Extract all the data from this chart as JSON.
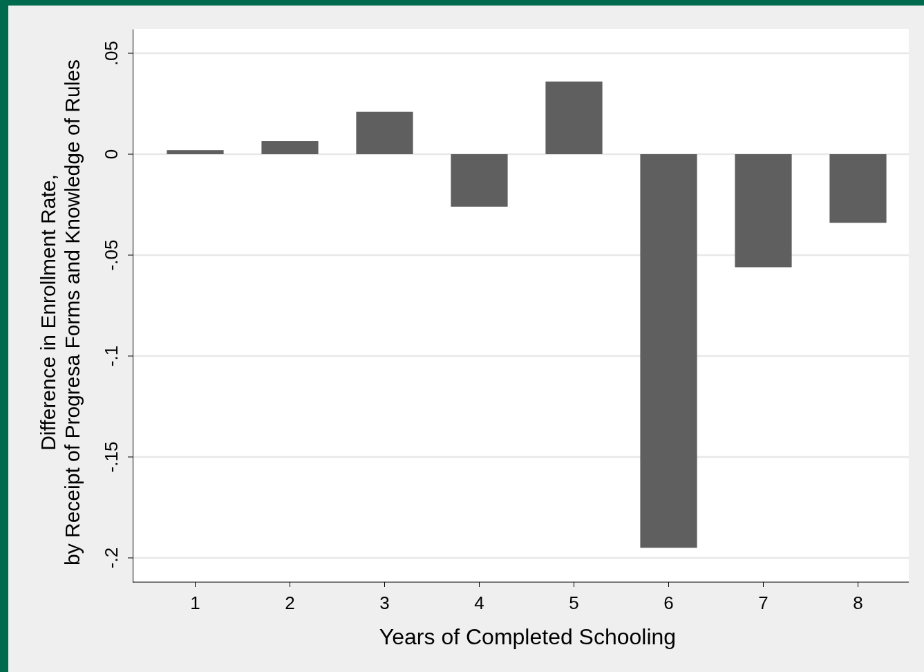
{
  "chart_data": {
    "type": "bar",
    "xlabel": "Years of Completed Schooling",
    "ylabel": "Difference in Enrollment Rate,\nby Receipt of Progresa Forms and Knowledge of Rules",
    "categories": [
      "1",
      "2",
      "3",
      "4",
      "5",
      "6",
      "7",
      "8"
    ],
    "values": [
      0.002,
      0.0065,
      0.021,
      -0.026,
      0.036,
      -0.195,
      -0.056,
      -0.034
    ],
    "color": "#5f5f5f",
    "ylim": [
      -0.212,
      0.062
    ],
    "yticks": [
      {
        "value": -0.2,
        "label": "-.2"
      },
      {
        "value": -0.15,
        "label": "-.15"
      },
      {
        "value": -0.1,
        "label": "-.1"
      },
      {
        "value": -0.05,
        "label": "-.05"
      },
      {
        "value": 0,
        "label": "0"
      },
      {
        "value": 0.05,
        "label": ".05"
      }
    ],
    "grid": "y"
  }
}
